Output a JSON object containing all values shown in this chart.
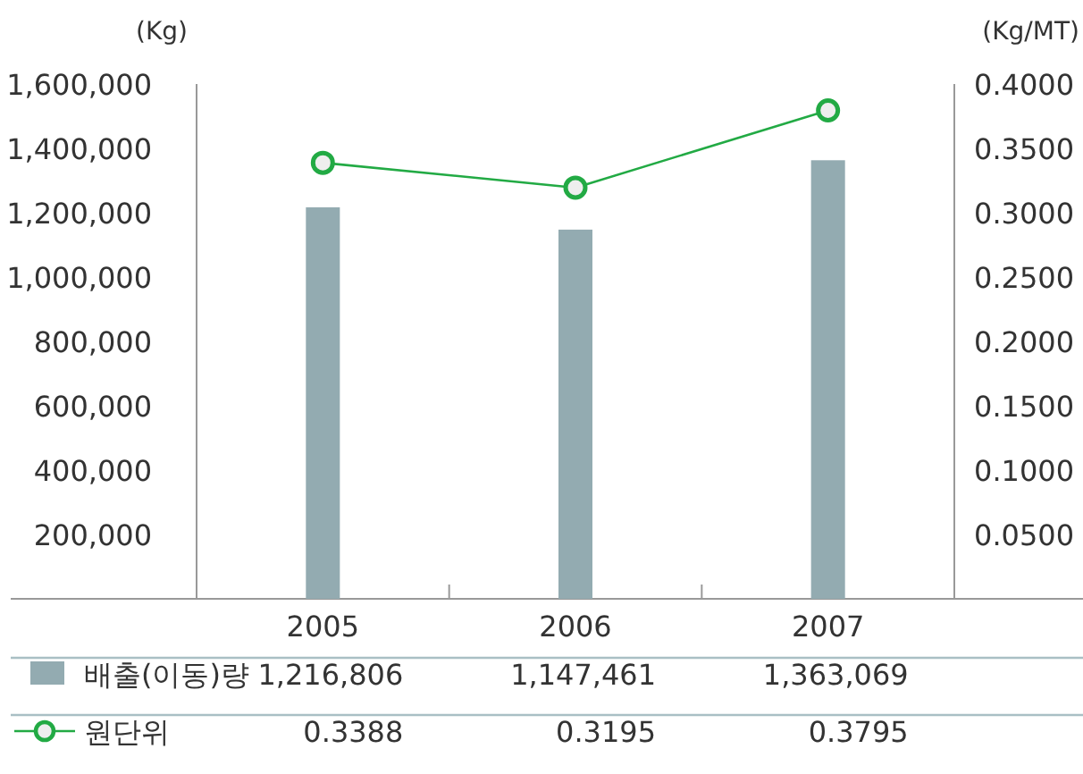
{
  "chart_data": {
    "type": "bar",
    "categories": [
      "2005",
      "2006",
      "2007"
    ],
    "series": [
      {
        "name": "배출(이동)량",
        "color": "#93abb1",
        "values": [
          1216806,
          1147461,
          1363069
        ],
        "value_labels": [
          "1,216,806",
          "1,147,461",
          "1,363,069"
        ]
      },
      {
        "name": "원단위",
        "type": "line",
        "axis": "y2",
        "marker": "circle",
        "color": "#22aa44",
        "values": [
          0.3388,
          0.3195,
          0.3795
        ],
        "value_labels": [
          "0.3388",
          "0.3195",
          "0.3795"
        ]
      }
    ],
    "ylabel": "(Kg)",
    "y2label": "(Kg/MT)",
    "ylim": [
      0,
      1600000
    ],
    "yticks": [
      {
        "value": 200000,
        "label": "200,000"
      },
      {
        "value": 400000,
        "label": "400,000"
      },
      {
        "value": 600000,
        "label": "600,000"
      },
      {
        "value": 800000,
        "label": "800,000"
      },
      {
        "value": 1000000,
        "label": "1,000,000"
      },
      {
        "value": 1200000,
        "label": "1,200,000"
      },
      {
        "value": 1400000,
        "label": "1,400,000"
      },
      {
        "value": 1600000,
        "label": "1,600,000"
      }
    ],
    "y2lim": [
      0,
      0.4
    ],
    "y2ticks": [
      {
        "value": 0.05,
        "label": "0.0500"
      },
      {
        "value": 0.1,
        "label": "0.1000"
      },
      {
        "value": 0.15,
        "label": "0.1500"
      },
      {
        "value": 0.2,
        "label": "0.2000"
      },
      {
        "value": 0.25,
        "label": "0.2500"
      },
      {
        "value": 0.3,
        "label": "0.3000"
      },
      {
        "value": 0.35,
        "label": "0.3500"
      },
      {
        "value": 0.4,
        "label": "0.4000"
      }
    ],
    "legend": "bottom"
  }
}
